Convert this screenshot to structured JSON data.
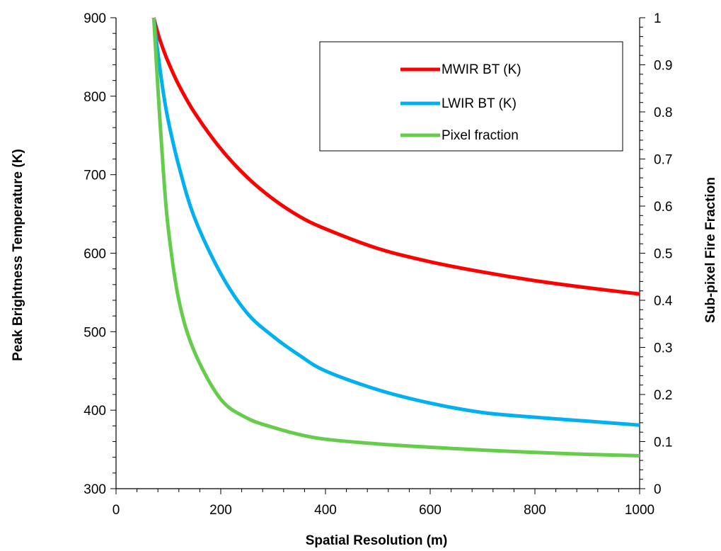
{
  "chart_data": {
    "type": "line",
    "xlabel": "Spatial Resolution (m)",
    "ylabel": "Peak Brightness Temperature (K)",
    "y2label": "Sub-pixel Fire Fraction",
    "xlim": [
      0,
      1000
    ],
    "ylim": [
      300,
      900
    ],
    "y2lim": [
      0,
      1
    ],
    "x_ticks": [
      "0",
      "200",
      "400",
      "600",
      "800",
      "1000"
    ],
    "y_ticks": [
      "300",
      "400",
      "500",
      "600",
      "700",
      "800",
      "900"
    ],
    "y2_ticks": [
      "0",
      "0.1",
      "0.2",
      "0.3",
      "0.4",
      "0.5",
      "0.6",
      "0.7",
      "0.8",
      "0.9",
      "1"
    ],
    "grid": false,
    "legend_position": "top-right",
    "series": [
      {
        "name": "MWIR BT (K)",
        "axis": "left",
        "color": "#ff0000",
        "x": [
          72,
          80,
          90,
          100,
          120,
          150,
          200,
          250,
          300,
          350,
          400,
          500,
          600,
          700,
          800,
          900,
          1000
        ],
        "y": [
          900,
          880,
          860,
          843,
          814,
          779,
          733,
          697,
          669,
          647,
          631,
          606,
          589,
          576,
          565,
          556,
          548
        ]
      },
      {
        "name": "LWIR BT (K)",
        "axis": "left",
        "color": "#00b0f0",
        "x": [
          72,
          80,
          90,
          100,
          120,
          150,
          200,
          250,
          300,
          350,
          400,
          500,
          600,
          700,
          800,
          900,
          1000
        ],
        "y": [
          900,
          855,
          806,
          768,
          711,
          645,
          574,
          524,
          494,
          470,
          450,
          426,
          409,
          397,
          391,
          386,
          381
        ]
      },
      {
        "name": "Pixel fraction",
        "axis": "right",
        "color": "#66cc4c",
        "x": [
          72,
          80,
          90,
          100,
          120,
          150,
          200,
          250,
          300,
          350,
          400,
          500,
          600,
          700,
          800,
          900,
          1000
        ],
        "y": [
          1.0,
          0.85,
          0.68,
          0.55,
          0.4,
          0.29,
          0.19,
          0.15,
          0.13,
          0.115,
          0.105,
          0.095,
          0.088,
          0.082,
          0.077,
          0.073,
          0.07
        ]
      }
    ]
  }
}
